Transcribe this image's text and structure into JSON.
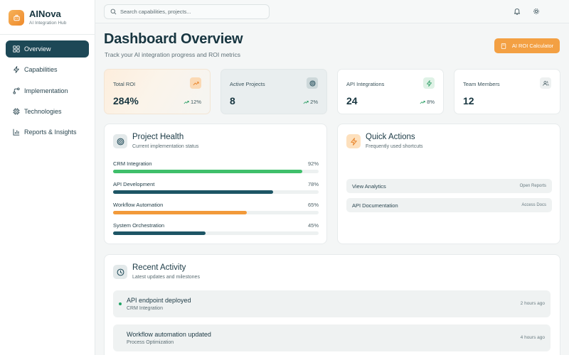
{
  "brand": {
    "name": "AINova",
    "subtitle": "AI Integration Hub"
  },
  "sidebar": {
    "items": [
      {
        "label": "Overview",
        "icon": "grid-icon",
        "active": true
      },
      {
        "label": "Capabilities",
        "icon": "zap-icon",
        "active": false
      },
      {
        "label": "Implementation",
        "icon": "workflow-icon",
        "active": false
      },
      {
        "label": "Technologies",
        "icon": "cpu-icon",
        "active": false
      },
      {
        "label": "Reports & Insights",
        "icon": "bar-chart-icon",
        "active": false
      }
    ]
  },
  "topbar": {
    "search_placeholder": "Search capabilities, projects...",
    "icons": [
      "bell-icon",
      "gear-icon"
    ]
  },
  "header": {
    "title": "Dashboard Overview",
    "subtitle": "Track your AI integration progress and ROI metrics",
    "roi_button": "AI ROI Calculator"
  },
  "stats": [
    {
      "label": "Total ROI",
      "value": "284%",
      "trend": "12%",
      "icon": "trending-up-icon"
    },
    {
      "label": "Active Projects",
      "value": "8",
      "trend": "2%",
      "icon": "target-icon"
    },
    {
      "label": "API Integrations",
      "value": "24",
      "trend": "8%",
      "icon": "zap-icon"
    },
    {
      "label": "Team Members",
      "value": "12",
      "trend": "",
      "icon": "users-icon"
    }
  ],
  "health": {
    "title": "Project Health",
    "subtitle": "Current implementation status",
    "items": [
      {
        "name": "CRM Integration",
        "pct_label": "92%",
        "pct": 0.92,
        "color": "#3fbf6b"
      },
      {
        "name": "API Development",
        "pct_label": "78%",
        "pct": 0.78,
        "color": "#1d5565"
      },
      {
        "name": "Workflow Automation",
        "pct_label": "65%",
        "pct": 0.65,
        "color": "#f29a3a"
      },
      {
        "name": "System Orchestration",
        "pct_label": "45%",
        "pct": 0.45,
        "color": "#1d5565"
      }
    ]
  },
  "quick_actions": {
    "title": "Quick Actions",
    "subtitle": "Frequently used shortcuts",
    "items": [
      {
        "label": "View Analytics",
        "hint": "Open Reports"
      },
      {
        "label": "API Documentation",
        "hint": "Access Docs"
      }
    ]
  },
  "activity": {
    "title": "Recent Activity",
    "subtitle": "Latest updates and milestones",
    "items": [
      {
        "title": "API endpoint deployed",
        "sub": "CRM Integration",
        "time": "2 hours ago"
      },
      {
        "title": "Workflow automation updated",
        "sub": "Process Optimization",
        "time": "4 hours ago"
      }
    ]
  },
  "colors": {
    "accent": "#f3a043",
    "primary": "#1d4856",
    "success": "#3fbf6b"
  }
}
